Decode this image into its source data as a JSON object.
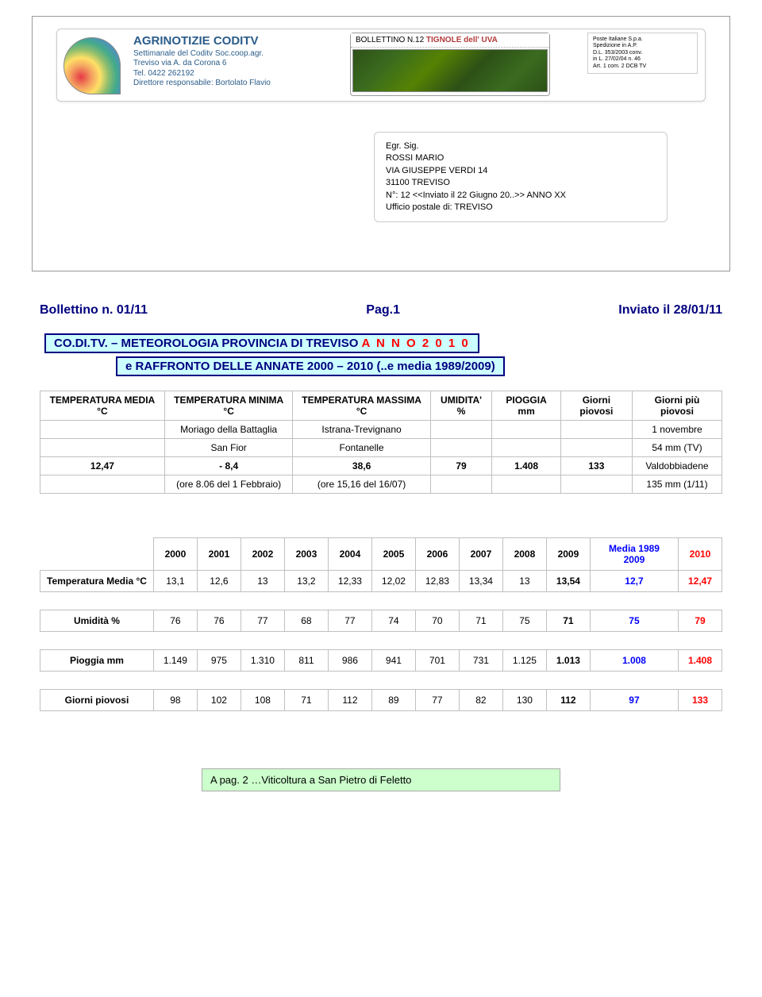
{
  "letterhead": {
    "title": "AGRINOTIZIE CODITV",
    "line1": "Settimanale del Coditv Soc.coop.agr.",
    "line2": "Treviso via A. da Corona 6",
    "line3": "Tel. 0422 262192",
    "line4": "Direttore responsabile: Bortolato Flavio"
  },
  "bollettino_box": {
    "prefix": "BOLLETTINO N.12",
    "title_red": "TIGNOLE dell' UVA"
  },
  "postal": {
    "l1": "Poste Italiane S.p.a.",
    "l2": "Spedizione in A.P.",
    "l3": "D.L. 353/2003 conv.",
    "l4": "in L. 27/02/04 n. 46",
    "l5": "Art. 1 com. 2 DCB TV"
  },
  "address": {
    "l1": "Egr. Sig.",
    "l2": "ROSSI MARIO",
    "l3": "VIA GIUSEPPE VERDI  14",
    "l4": "31100  TREVISO",
    "l5": "N°: 12 <<Inviato il 22 Giugno 20..>> ANNO XX",
    "l6": "Ufficio postale di: TREVISO"
  },
  "title_row": {
    "left": "Bollettino n. 01/11",
    "mid": "Pag.1",
    "right": "Inviato il 28/01/11"
  },
  "meteo_header": {
    "prefix": "CO.DI.TV. – METEOROLOGIA PROVINCIA DI TREVISO   ",
    "anno": "A N N O   2 0 1 0",
    "line2": "e  RAFFRONTO DELLE ANNATE 2000 – 2010 (..e media 1989/2009)"
  },
  "summary": {
    "headers": [
      "TEMPERATURA MEDIA °C",
      "TEMPERATURA MINIMA °C",
      "TEMPERATURA MASSIMA °C",
      "UMIDITA' %",
      "PIOGGIA mm",
      "Giorni piovosi",
      "Giorni più piovosi"
    ],
    "row1": [
      "",
      "Moriago della Battaglia",
      "Istrana-Trevignano",
      "",
      "",
      "",
      "1 novembre"
    ],
    "row2": [
      "",
      "San Fior",
      "Fontanelle",
      "",
      "",
      "",
      "54 mm (TV)"
    ],
    "row3": [
      "12,47",
      "- 8,4",
      "38,6",
      "79",
      "1.408",
      "133",
      "Valdobbiadene"
    ],
    "row4": [
      "",
      "(ore 8.06 del 1 Febbraio)",
      "(ore 15,16 del 16/07)",
      "",
      "",
      "",
      "135 mm (1/11)"
    ]
  },
  "annual": {
    "years": [
      "2000",
      "2001",
      "2002",
      "2003",
      "2004",
      "2005",
      "2006",
      "2007",
      "2008",
      "2009"
    ],
    "media_col_header": "Media 1989 2009",
    "last_col_header": "2010",
    "rows": [
      {
        "label": "Temperatura Media °C",
        "cells": [
          "13,1",
          "12,6",
          "13",
          "13,2",
          "12,33",
          "12,02",
          "12,83",
          "13,34",
          "13",
          "13,54"
        ],
        "media": "12,7",
        "last": "12,47"
      },
      {
        "label": "Umidità %",
        "cells": [
          "76",
          "76",
          "77",
          "68",
          "77",
          "74",
          "70",
          "71",
          "75",
          "71"
        ],
        "media": "75",
        "last": "79"
      },
      {
        "label": "Pioggia mm",
        "cells": [
          "1.149",
          "975",
          "1.310",
          "811",
          "986",
          "941",
          "701",
          "731",
          "1.125",
          "1.013"
        ],
        "media": "1.008",
        "last": "1.408"
      },
      {
        "label": "Giorni piovosi",
        "cells": [
          "98",
          "102",
          "108",
          "71",
          "112",
          "89",
          "77",
          "82",
          "130",
          "112"
        ],
        "media": "97",
        "last": "133"
      }
    ]
  },
  "footer": "A pag. 2 …Viticoltura a San Pietro di Feletto"
}
